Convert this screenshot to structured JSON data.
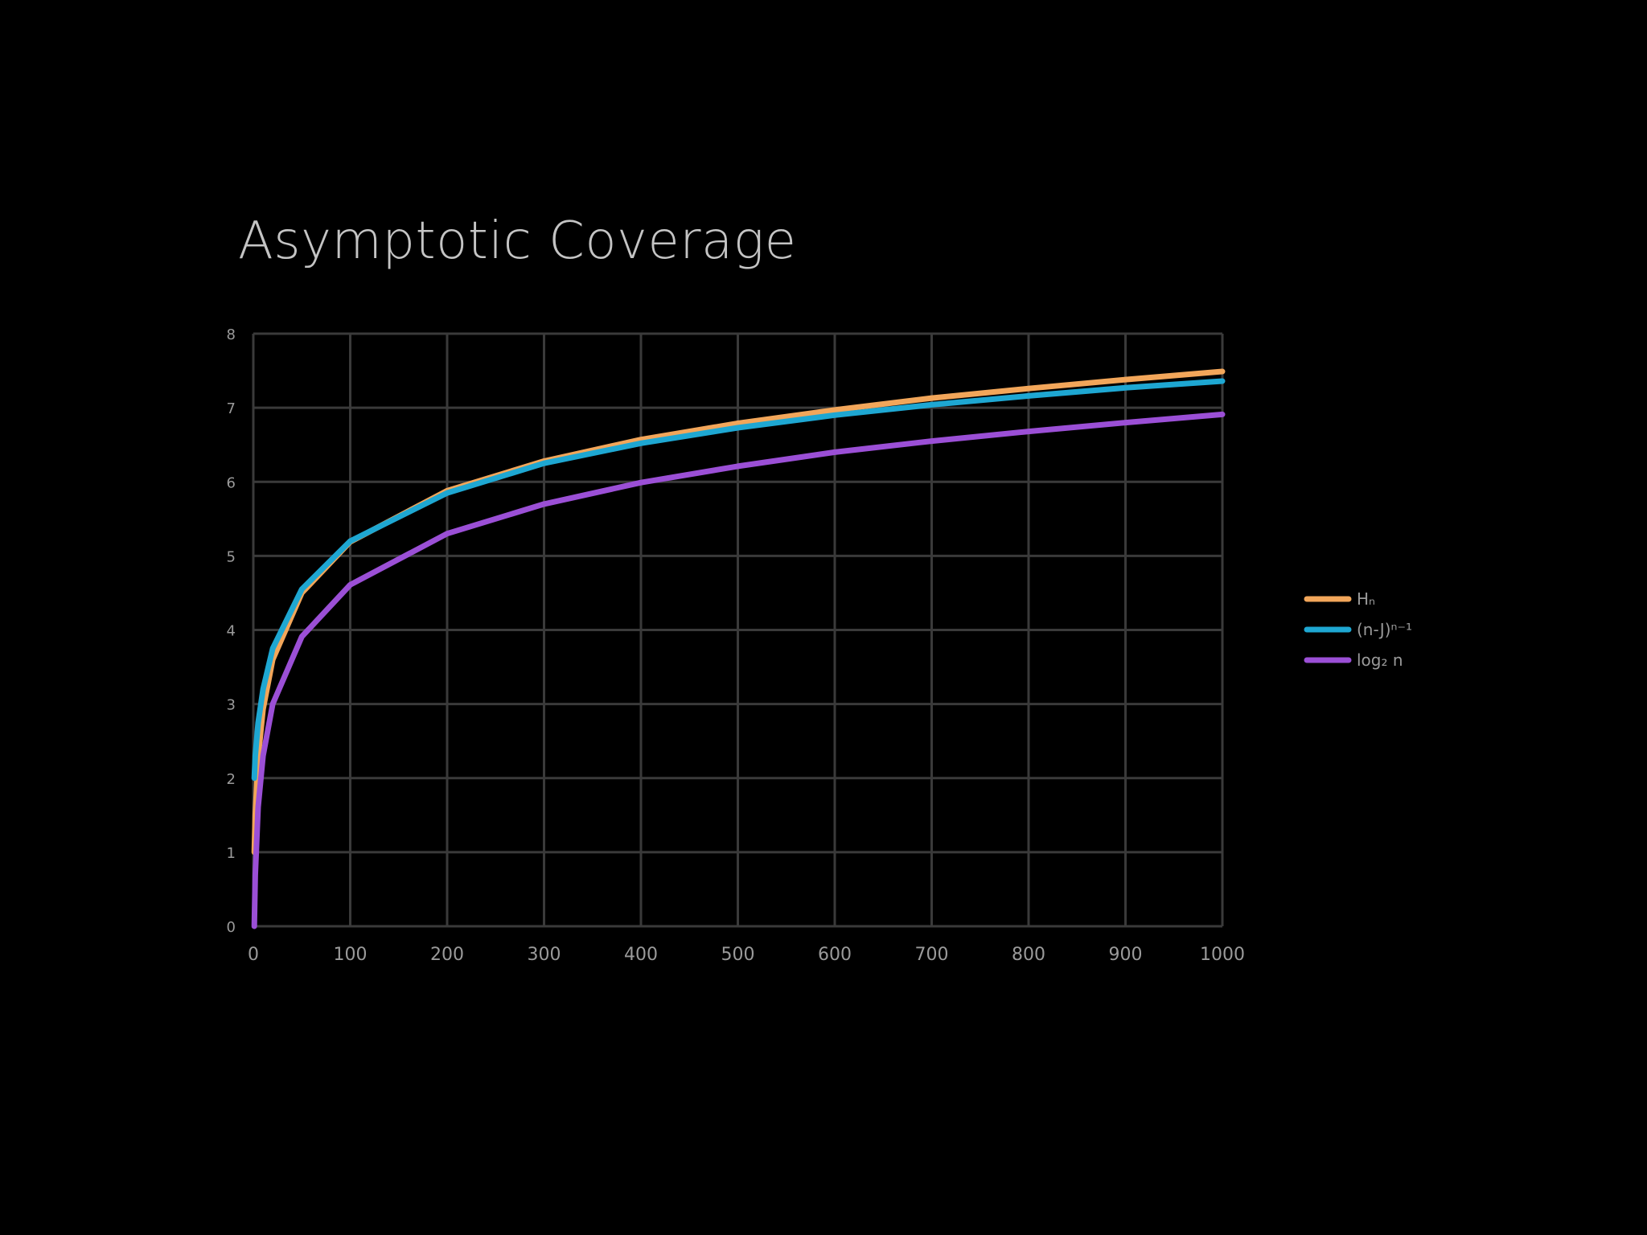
{
  "slide": {
    "title": "Asymptotic Coverage"
  },
  "colors": {
    "background": "#000000",
    "grid": "#3a3a3a",
    "axis_text": "#9a9a9a",
    "title": "#c4c4c4"
  },
  "chart_data": {
    "type": "line",
    "title": "Asymptotic Coverage",
    "xlabel": "",
    "ylabel": "",
    "xlim": [
      0,
      1000
    ],
    "ylim": [
      0,
      8
    ],
    "grid": true,
    "legend_position": "right",
    "x_ticks": [
      "0",
      "100",
      "200",
      "300",
      "400",
      "500",
      "600",
      "700",
      "800",
      "900",
      "1000"
    ],
    "y_ticks": [
      "0",
      "1",
      "2",
      "3",
      "4",
      "5",
      "6",
      "7",
      "8"
    ],
    "x": [
      1,
      2,
      5,
      10,
      20,
      50,
      100,
      200,
      300,
      400,
      500,
      600,
      700,
      800,
      900,
      1000
    ],
    "series": [
      {
        "name": "Hₙ",
        "color": "#f2a65a",
        "values": [
          1.0,
          1.5,
          2.28,
          2.93,
          3.6,
          4.5,
          5.19,
          5.88,
          6.28,
          6.57,
          6.79,
          6.97,
          7.13,
          7.26,
          7.38,
          7.49
        ]
      },
      {
        "name": "(n-J)ⁿ⁻¹",
        "color": "#1ea7d2",
        "values": [
          2.0,
          2.3,
          2.75,
          3.2,
          3.75,
          4.55,
          5.2,
          5.85,
          6.25,
          6.52,
          6.73,
          6.9,
          7.04,
          7.16,
          7.27,
          7.36
        ]
      },
      {
        "name": "log₂ n",
        "color": "#9b4fd6",
        "values": [
          0.0,
          0.69,
          1.61,
          2.3,
          3.0,
          3.91,
          4.61,
          5.3,
          5.7,
          5.99,
          6.21,
          6.4,
          6.55,
          6.68,
          6.8,
          6.91
        ]
      }
    ]
  }
}
